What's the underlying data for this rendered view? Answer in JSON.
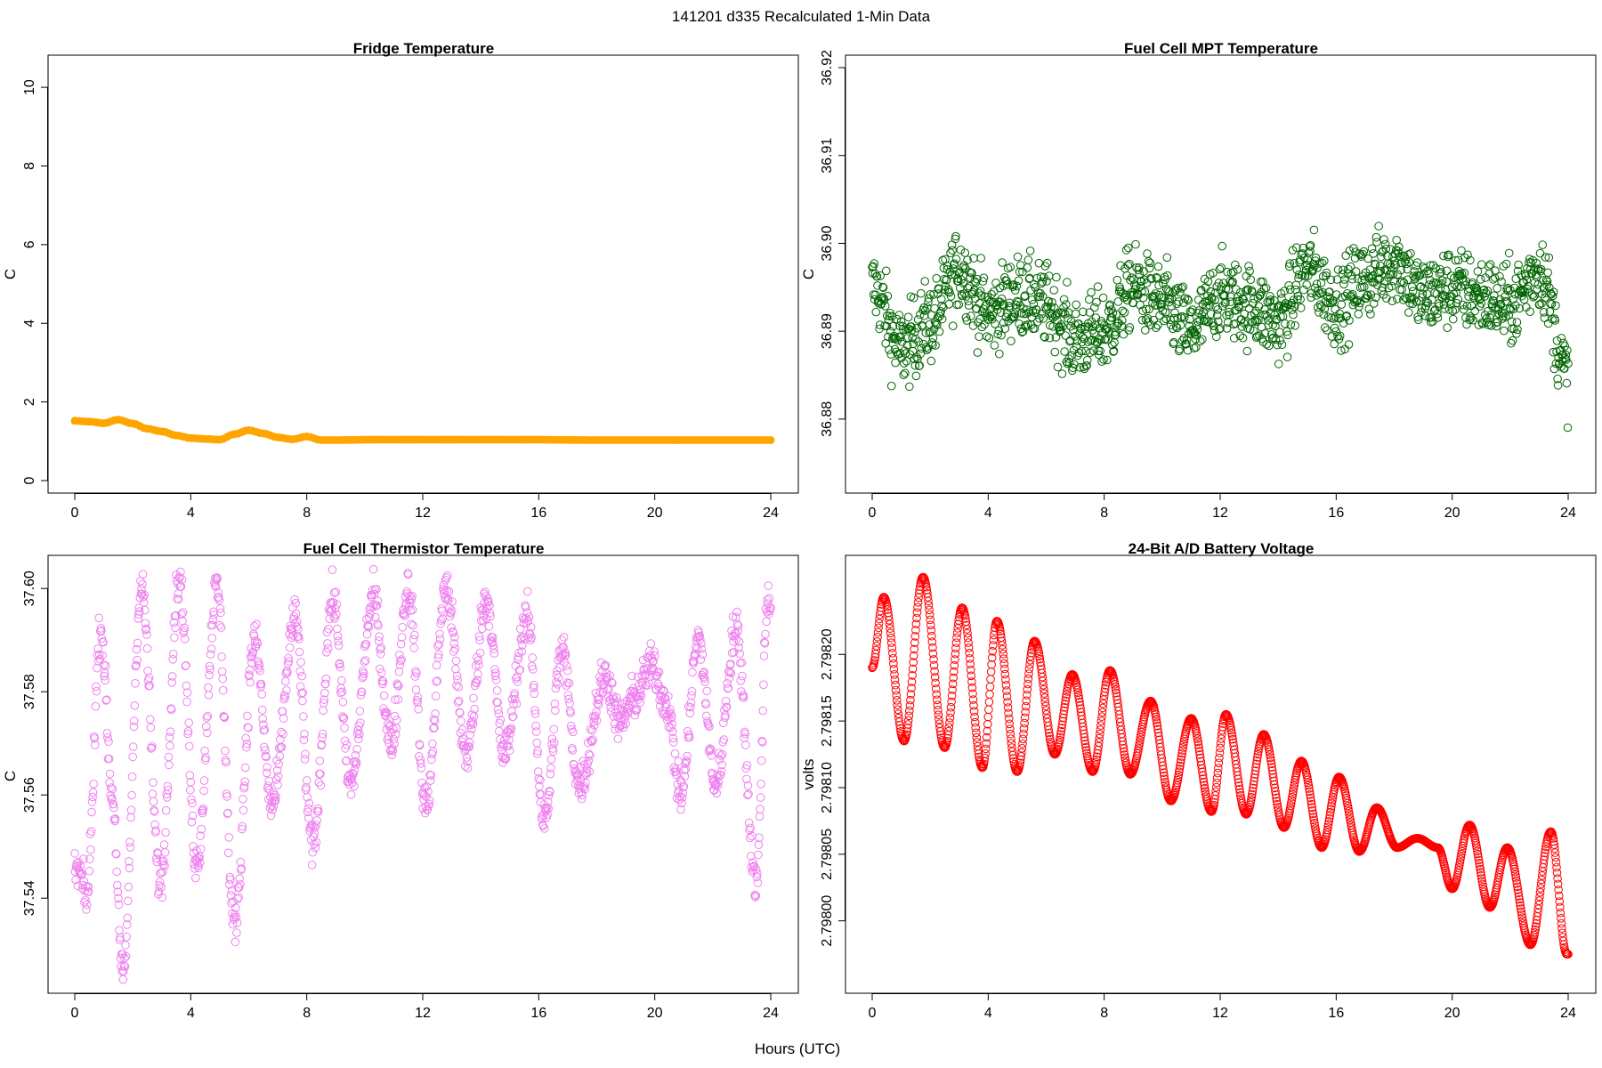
{
  "figure": {
    "title": "141201   d335   Recalculated 1-Min Data",
    "xlabel": "Hours (UTC)"
  },
  "chart_data": [
    {
      "type": "scatter",
      "title": "Fridge Temperature",
      "xlabel": "Hours (UTC)",
      "ylabel": "C",
      "xlim": [
        0,
        24
      ],
      "ylim": [
        0,
        10.5
      ],
      "xticks": [
        0,
        4,
        8,
        12,
        16,
        20,
        24
      ],
      "yticks": [
        0,
        2,
        4,
        6,
        8,
        10
      ],
      "tick_labels_x": [
        "0",
        "4",
        "8",
        "12",
        "16",
        "20",
        "24"
      ],
      "tick_labels_y": [
        "0",
        "2",
        "4",
        "6",
        "8",
        "10"
      ],
      "color": "#FFA500",
      "marker": "circle",
      "points_per_hour": 8,
      "series": [
        {
          "name": "Fridge Temperature",
          "x": [
            0,
            0.5,
            1,
            1.5,
            2,
            2.5,
            3,
            3.5,
            4,
            4.5,
            5,
            5.5,
            6,
            6.5,
            7,
            7.5,
            8,
            8.5,
            9,
            10,
            12,
            14,
            16,
            18,
            20,
            22,
            24
          ],
          "y": [
            1.52,
            1.5,
            1.46,
            1.55,
            1.45,
            1.32,
            1.25,
            1.15,
            1.08,
            1.06,
            1.04,
            1.18,
            1.28,
            1.2,
            1.1,
            1.05,
            1.12,
            1.03,
            1.03,
            1.04,
            1.04,
            1.04,
            1.04,
            1.03,
            1.03,
            1.03,
            1.03
          ]
        }
      ]
    },
    {
      "type": "scatter",
      "title": "Fuel Cell MPT Temperature",
      "xlabel": "Hours (UTC)",
      "ylabel": "C",
      "xlim": [
        0,
        24
      ],
      "ylim": [
        36.873,
        36.92
      ],
      "xticks": [
        0,
        4,
        8,
        12,
        16,
        20,
        24
      ],
      "yticks": [
        36.88,
        36.89,
        36.9,
        36.91,
        36.92
      ],
      "tick_labels_x": [
        "0",
        "4",
        "8",
        "12",
        "16",
        "20",
        "24"
      ],
      "tick_labels_y": [
        "36.88",
        "36.89",
        "36.90",
        "36.91",
        "36.92"
      ],
      "color": "#006400",
      "marker": "open-circle",
      "points_per_hour": 60,
      "series": [
        {
          "name": "Fuel Cell MPT Temperature",
          "x": [
            0,
            1,
            2,
            3,
            4,
            5,
            6,
            7,
            8,
            9,
            10,
            11,
            12,
            13,
            14,
            15,
            16,
            17,
            18,
            19,
            20,
            21,
            22,
            23,
            24
          ],
          "y": [
            36.895,
            36.888,
            36.891,
            36.897,
            36.892,
            36.894,
            36.893,
            36.889,
            36.89,
            36.895,
            36.893,
            36.89,
            36.894,
            36.893,
            36.891,
            36.897,
            36.893,
            36.896,
            36.898,
            36.894,
            36.895,
            36.894,
            36.893,
            36.897,
            36.885
          ]
        }
      ]
    },
    {
      "type": "scatter",
      "title": "Fuel Cell Thermistor Temperature",
      "xlabel": "Hours (UTC)",
      "ylabel": "C",
      "xlim": [
        0,
        24
      ],
      "ylim": [
        37.524,
        37.604
      ],
      "xticks": [
        0,
        4,
        8,
        12,
        16,
        20,
        24
      ],
      "yticks": [
        37.54,
        37.56,
        37.58,
        37.6
      ],
      "tick_labels_x": [
        "0",
        "4",
        "8",
        "12",
        "16",
        "20",
        "24"
      ],
      "tick_labels_y": [
        "37.54",
        "37.56",
        "37.58",
        "37.60"
      ],
      "color": "#EE82EE",
      "marker": "open-circle",
      "points_per_hour": 60,
      "series": [
        {
          "name": "Fuel Cell Thermistor Temperature",
          "x": [
            0.15,
            0.4,
            0.9,
            1.3,
            1.65,
            2.3,
            2.95,
            3.6,
            4.2,
            4.9,
            5.5,
            6.2,
            6.8,
            7.6,
            8.2,
            8.9,
            9.5,
            10.3,
            10.9,
            11.5,
            12.1,
            12.8,
            13.5,
            14.2,
            14.8,
            15.6,
            16.2,
            16.8,
            17.4,
            18.3,
            18.8,
            19.3,
            19.9,
            20.4,
            20.9,
            21.5,
            22.1,
            22.8,
            23.5,
            23.9
          ],
          "y": [
            37.545,
            37.54,
            37.592,
            37.56,
            37.525,
            37.6,
            37.543,
            37.602,
            37.547,
            37.6,
            37.535,
            37.59,
            37.558,
            37.594,
            37.55,
            37.598,
            37.562,
            37.598,
            37.57,
            37.6,
            37.558,
            37.6,
            37.568,
            37.598,
            37.568,
            37.594,
            37.555,
            37.588,
            37.562,
            37.583,
            37.574,
            37.579,
            37.585,
            37.578,
            37.56,
            37.59,
            37.562,
            37.592,
            37.543,
            37.598
          ]
        }
      ]
    },
    {
      "type": "scatter",
      "title": "24-Bit A/D Battery Voltage",
      "xlabel": "Hours (UTC)",
      "ylabel": "volts",
      "xlim": [
        0,
        24
      ],
      "ylim": [
        2.797955,
        2.798265
      ],
      "xticks": [
        0,
        4,
        8,
        12,
        16,
        20,
        24
      ],
      "yticks": [
        2.798,
        2.79805,
        2.7981,
        2.79815,
        2.7982
      ],
      "tick_labels_x": [
        "0",
        "4",
        "8",
        "12",
        "16",
        "20",
        "24"
      ],
      "tick_labels_y": [
        "2.79800",
        "2.79805",
        "2.79810",
        "2.79815",
        "2.79820"
      ],
      "color": "#FF0000",
      "marker": "open-circle",
      "points_per_hour": 60,
      "series": [
        {
          "name": "24-Bit A/D Battery Voltage",
          "x": [
            0,
            0.4,
            1.1,
            1.75,
            2.5,
            3.1,
            3.8,
            4.3,
            5.0,
            5.6,
            6.3,
            6.9,
            7.6,
            8.2,
            8.9,
            9.6,
            10.3,
            11.0,
            11.7,
            12.2,
            12.9,
            13.5,
            14.2,
            14.8,
            15.5,
            16.1,
            16.8,
            17.4,
            18.1,
            18.8,
            19.5,
            20.0,
            20.6,
            21.3,
            21.9,
            22.7,
            23.4,
            23.95
          ],
          "y": [
            2.79819,
            2.798243,
            2.798135,
            2.798258,
            2.79813,
            2.798235,
            2.798115,
            2.798225,
            2.798112,
            2.79821,
            2.798125,
            2.798185,
            2.798112,
            2.798188,
            2.79811,
            2.798165,
            2.79809,
            2.798152,
            2.798082,
            2.798155,
            2.79808,
            2.79814,
            2.79807,
            2.79812,
            2.798055,
            2.798108,
            2.798052,
            2.798085,
            2.798055,
            2.798062,
            2.798055,
            2.798024,
            2.798072,
            2.79801,
            2.798055,
            2.797982,
            2.798067,
            2.797975
          ]
        }
      ]
    }
  ]
}
